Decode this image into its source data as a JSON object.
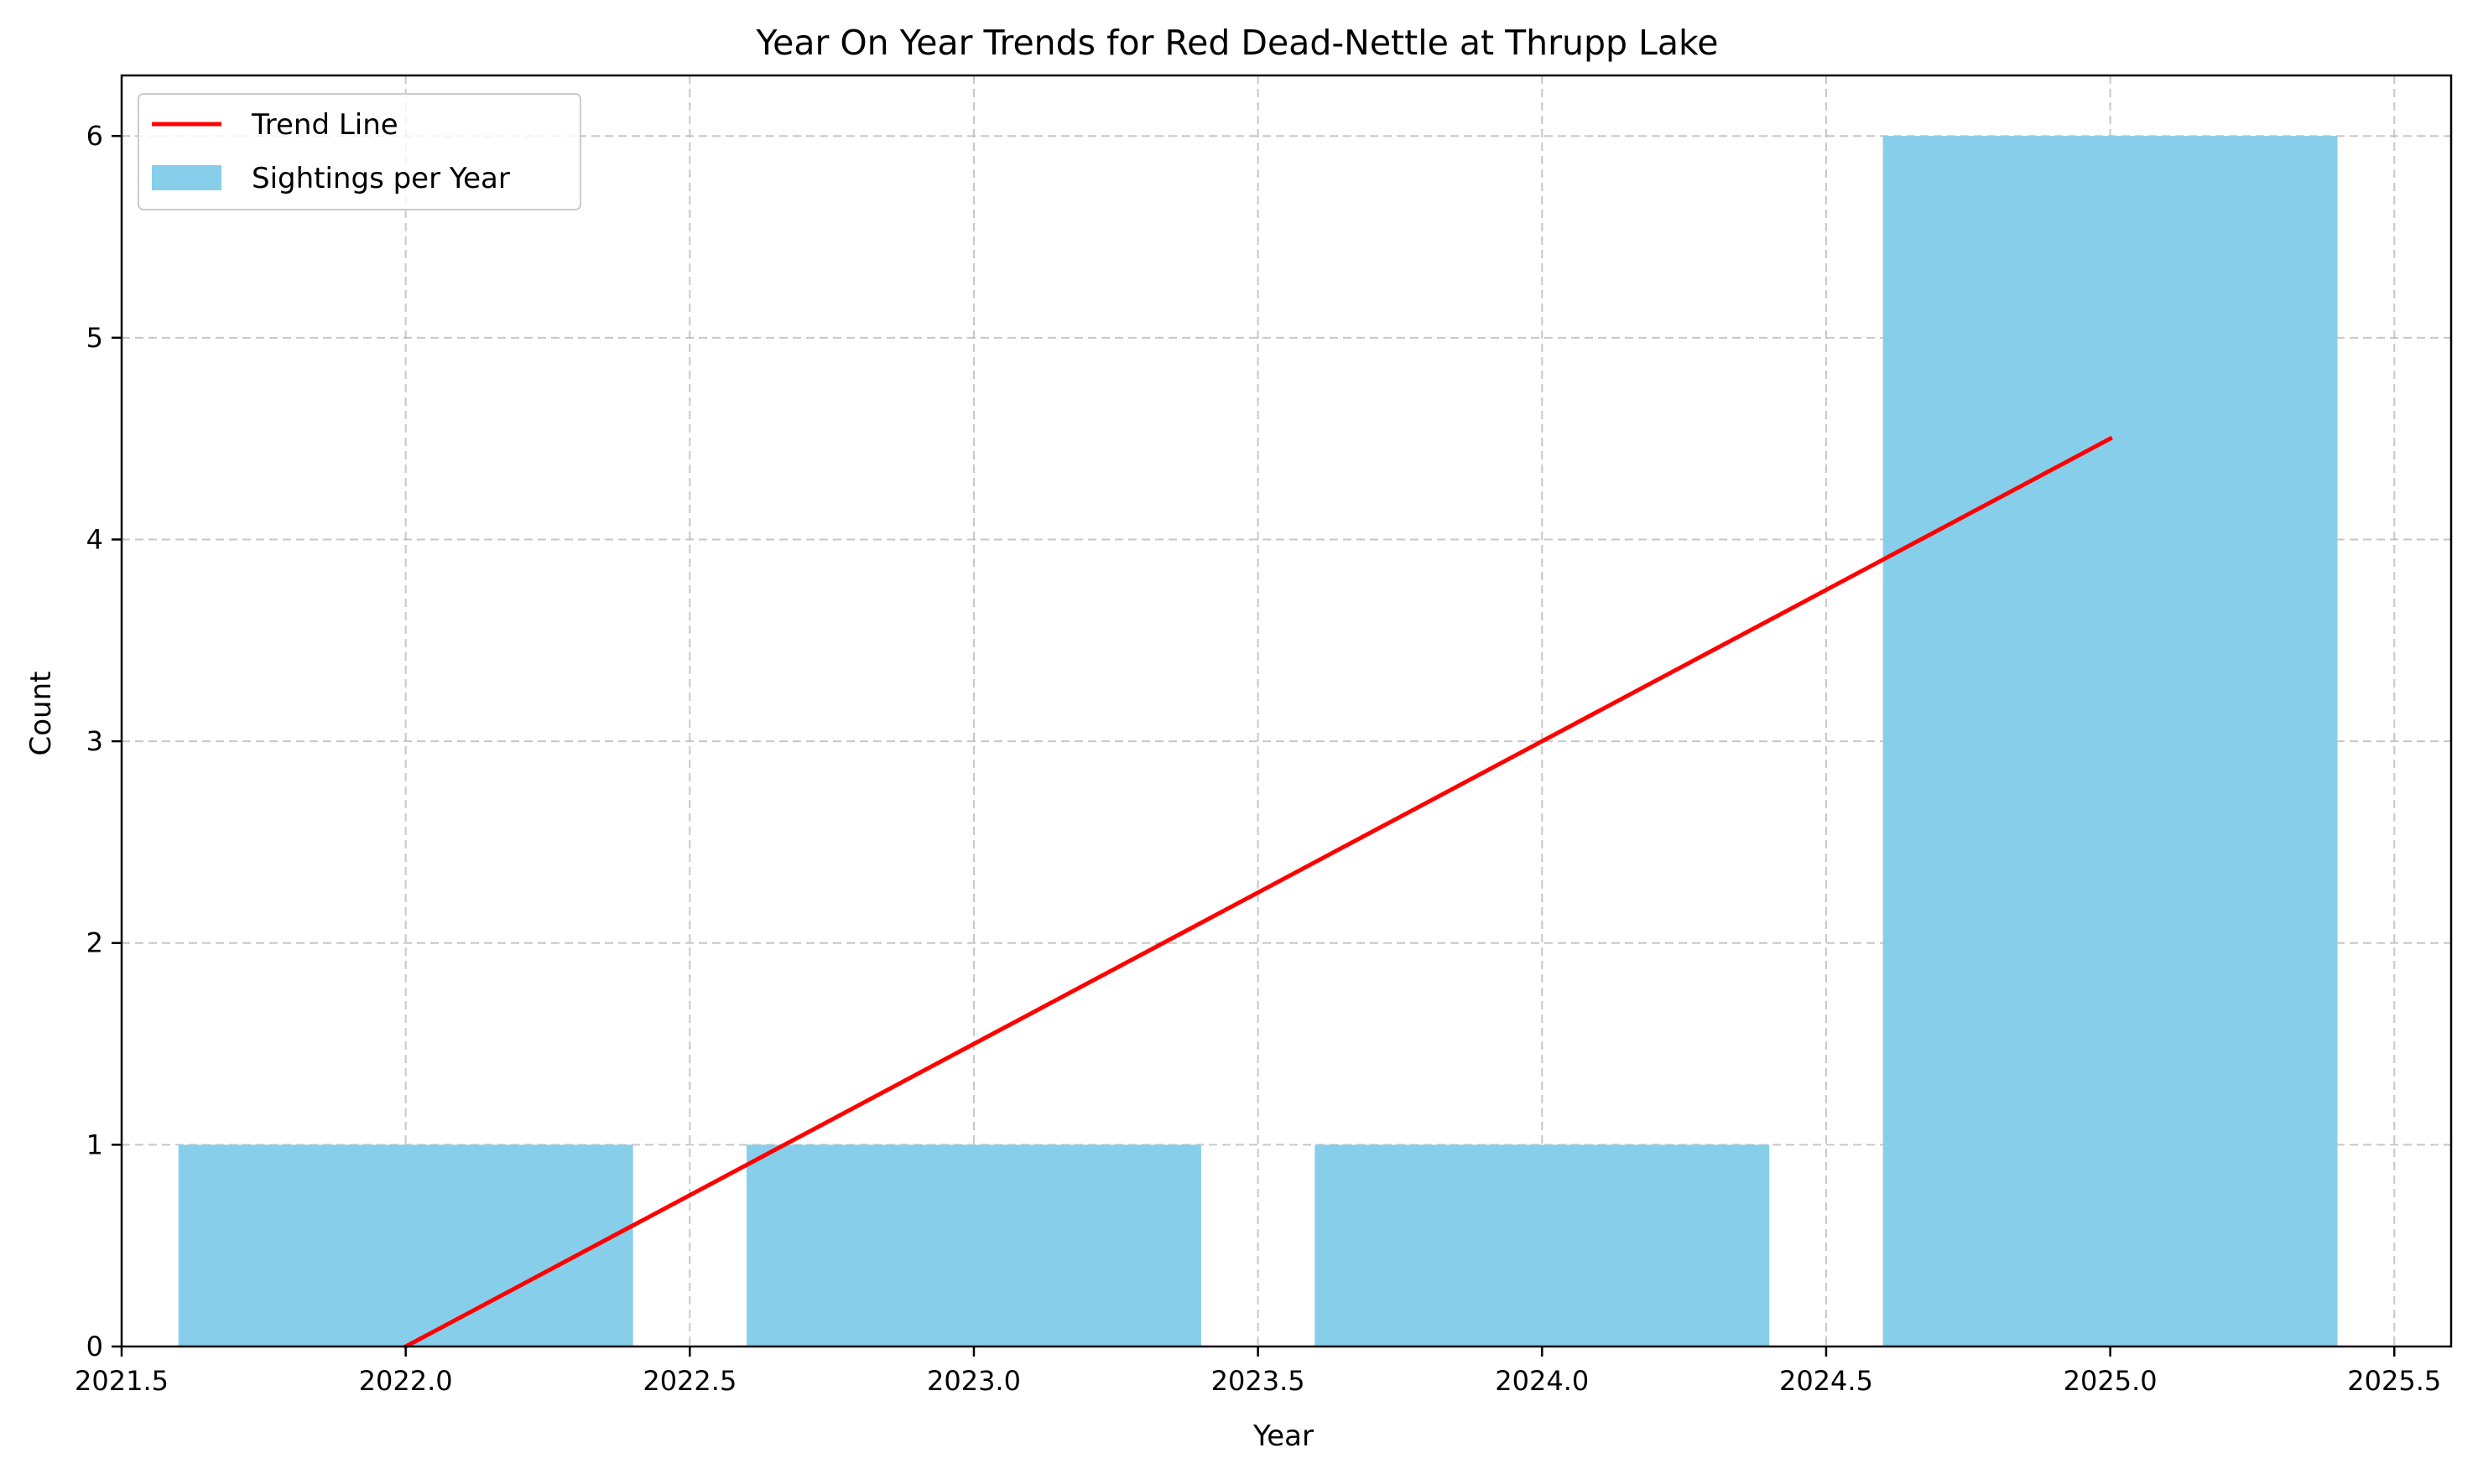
{
  "chart_data": {
    "type": "bar",
    "title": "Year On Year Trends for Red Dead-Nettle at Thrupp Lake",
    "xlabel": "Year",
    "ylabel": "Count",
    "xlim": [
      2021.5,
      2025.6
    ],
    "ylim": [
      0,
      6.3
    ],
    "x_ticks": [
      2021.5,
      2022.0,
      2022.5,
      2023.0,
      2023.5,
      2024.0,
      2024.5,
      2025.0,
      2025.5
    ],
    "x_tick_labels": [
      "2021.5",
      "2022.0",
      "2022.5",
      "2023.0",
      "2023.5",
      "2024.0",
      "2024.5",
      "2025.0",
      "2025.5"
    ],
    "y_ticks": [
      0,
      1,
      2,
      3,
      4,
      5,
      6
    ],
    "y_tick_labels": [
      "0",
      "1",
      "2",
      "3",
      "4",
      "5",
      "6"
    ],
    "grid": true,
    "legend_position": "top-left",
    "bar_width": 0.8,
    "bars": {
      "name": "Sightings per Year",
      "color": "#87CEEB",
      "x": [
        2022,
        2023,
        2024,
        2025
      ],
      "values": [
        1,
        1,
        1,
        6
      ]
    },
    "trend_line": {
      "name": "Trend Line",
      "color": "#FF0000",
      "x": [
        2022,
        2025
      ],
      "y": [
        0,
        4.5
      ]
    }
  }
}
